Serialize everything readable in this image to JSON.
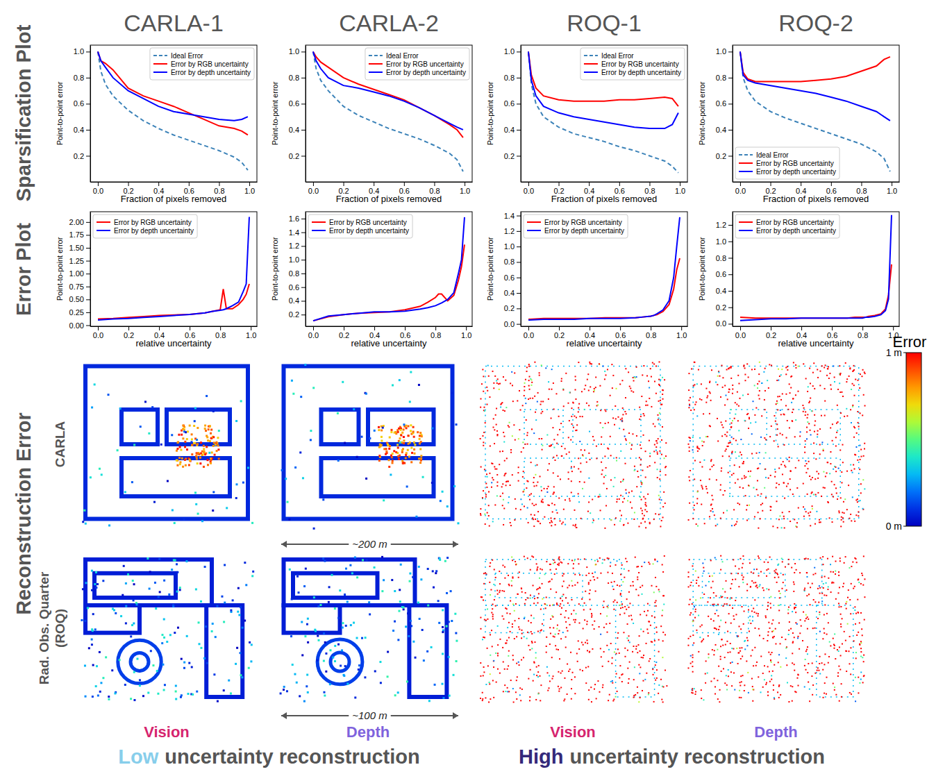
{
  "chart_data": [
    {
      "type": "line",
      "title": "CARLA-1",
      "x_label": "Fraction of pixels removed",
      "y_label": "Point-to-point error",
      "x": [
        0,
        0.02,
        0.05,
        0.1,
        0.2,
        0.3,
        0.4,
        0.5,
        0.6,
        0.7,
        0.8,
        0.9,
        0.95,
        0.99
      ],
      "xlim": [
        -0.05,
        1.05
      ],
      "xticks": [
        {
          "value": 0,
          "label": "0.0"
        },
        0.2,
        0.4,
        0.6,
        0.8,
        {
          "value": 1,
          "label": "1.0"
        }
      ],
      "ylim": [
        0,
        1.05
      ],
      "yticks": [
        0.2,
        0.4,
        0.6,
        0.8,
        {
          "value": 1,
          "label": "1.0"
        }
      ],
      "legend": "upper right",
      "series": [
        {
          "name": "Ideal Error",
          "color": "#3b82b8",
          "line_style": "dashed",
          "values": [
            1.0,
            0.85,
            0.75,
            0.66,
            0.55,
            0.47,
            0.41,
            0.36,
            0.32,
            0.28,
            0.24,
            0.19,
            0.15,
            0.09
          ]
        },
        {
          "name": "Error by RGB uncertainty",
          "color": "#ff0000",
          "line_style": "solid",
          "values": [
            1.0,
            0.93,
            0.91,
            0.86,
            0.72,
            0.66,
            0.62,
            0.58,
            0.53,
            0.48,
            0.43,
            0.41,
            0.39,
            0.36
          ]
        },
        {
          "name": "Error by depth uncertainty",
          "color": "#0000ff",
          "line_style": "solid",
          "values": [
            1.0,
            0.93,
            0.88,
            0.8,
            0.7,
            0.64,
            0.58,
            0.54,
            0.52,
            0.5,
            0.48,
            0.47,
            0.48,
            0.5
          ]
        }
      ]
    },
    {
      "type": "line",
      "title": "CARLA-2",
      "x_label": "Fraction of pixels removed",
      "y_label": "Point-to-point error",
      "x": [
        0,
        0.02,
        0.05,
        0.1,
        0.2,
        0.3,
        0.4,
        0.5,
        0.6,
        0.7,
        0.8,
        0.9,
        0.95,
        0.99
      ],
      "xlim": [
        -0.05,
        1.05
      ],
      "xticks": [
        {
          "value": 0,
          "label": "0.0"
        },
        0.2,
        0.4,
        0.6,
        0.8,
        {
          "value": 1,
          "label": "1.0"
        }
      ],
      "ylim": [
        0,
        1.05
      ],
      "yticks": [
        0.2,
        0.4,
        0.6,
        0.8,
        {
          "value": 1,
          "label": "1.0"
        }
      ],
      "legend": "upper right",
      "series": [
        {
          "name": "Ideal Error",
          "color": "#3b82b8",
          "line_style": "dashed",
          "values": [
            1.0,
            0.87,
            0.78,
            0.7,
            0.58,
            0.51,
            0.46,
            0.41,
            0.37,
            0.33,
            0.28,
            0.22,
            0.17,
            0.08
          ]
        },
        {
          "name": "Error by RGB uncertainty",
          "color": "#ff0000",
          "line_style": "solid",
          "values": [
            1.0,
            0.96,
            0.92,
            0.88,
            0.8,
            0.75,
            0.71,
            0.67,
            0.63,
            0.57,
            0.51,
            0.44,
            0.4,
            0.34
          ]
        },
        {
          "name": "Error by depth uncertainty",
          "color": "#0000ff",
          "line_style": "solid",
          "values": [
            1.0,
            0.93,
            0.87,
            0.8,
            0.74,
            0.72,
            0.69,
            0.66,
            0.62,
            0.57,
            0.51,
            0.45,
            0.42,
            0.4
          ]
        }
      ]
    },
    {
      "type": "line",
      "title": "ROQ-1",
      "x_label": "Fraction of pixels removed",
      "y_label": "Point-to-point error",
      "x": [
        0,
        0.02,
        0.05,
        0.1,
        0.2,
        0.3,
        0.4,
        0.5,
        0.6,
        0.7,
        0.8,
        0.9,
        0.95,
        0.99
      ],
      "xlim": [
        -0.05,
        1.05
      ],
      "xticks": [
        {
          "value": 0,
          "label": "0.0"
        },
        0.2,
        0.4,
        0.6,
        0.8,
        {
          "value": 1,
          "label": "1.0"
        }
      ],
      "ylim": [
        0,
        1.05
      ],
      "yticks": [
        0.2,
        0.4,
        0.6,
        0.8,
        {
          "value": 1,
          "label": "1.0"
        }
      ],
      "legend": "upper right",
      "series": [
        {
          "name": "Ideal Error",
          "color": "#3b82b8",
          "line_style": "dashed",
          "values": [
            1.0,
            0.75,
            0.6,
            0.5,
            0.42,
            0.37,
            0.34,
            0.31,
            0.27,
            0.24,
            0.2,
            0.16,
            0.12,
            0.07
          ]
        },
        {
          "name": "Error by RGB uncertainty",
          "color": "#ff0000",
          "line_style": "solid",
          "values": [
            1.0,
            0.82,
            0.72,
            0.66,
            0.63,
            0.62,
            0.62,
            0.62,
            0.63,
            0.63,
            0.64,
            0.65,
            0.64,
            0.58
          ]
        },
        {
          "name": "Error by depth uncertainty",
          "color": "#0000ff",
          "line_style": "solid",
          "values": [
            1.0,
            0.78,
            0.66,
            0.58,
            0.53,
            0.5,
            0.48,
            0.46,
            0.44,
            0.42,
            0.41,
            0.41,
            0.44,
            0.53
          ]
        }
      ]
    },
    {
      "type": "line",
      "title": "ROQ-2",
      "x_label": "Fraction of pixels removed",
      "y_label": "Point-to-point error",
      "x": [
        0,
        0.02,
        0.05,
        0.1,
        0.2,
        0.3,
        0.4,
        0.5,
        0.6,
        0.7,
        0.8,
        0.9,
        0.95,
        0.99
      ],
      "xlim": [
        -0.05,
        1.05
      ],
      "xticks": [
        {
          "value": 0,
          "label": "0.0"
        },
        0.2,
        0.4,
        0.6,
        0.8,
        {
          "value": 1,
          "label": "1.0"
        }
      ],
      "ylim": [
        0,
        1.05
      ],
      "yticks": [
        0.2,
        0.4,
        0.6,
        0.8,
        {
          "value": 1,
          "label": "1.0"
        }
      ],
      "legend": "lower left",
      "series": [
        {
          "name": "Ideal Error",
          "color": "#3b82b8",
          "line_style": "dashed",
          "values": [
            1.0,
            0.8,
            0.7,
            0.62,
            0.54,
            0.49,
            0.45,
            0.41,
            0.37,
            0.33,
            0.29,
            0.23,
            0.18,
            0.08
          ]
        },
        {
          "name": "Error by RGB uncertainty",
          "color": "#ff0000",
          "line_style": "solid",
          "values": [
            1.0,
            0.84,
            0.79,
            0.77,
            0.77,
            0.77,
            0.77,
            0.78,
            0.79,
            0.81,
            0.85,
            0.89,
            0.94,
            0.96
          ]
        },
        {
          "name": "Error by depth uncertainty",
          "color": "#0000ff",
          "line_style": "solid",
          "values": [
            1.0,
            0.82,
            0.78,
            0.76,
            0.74,
            0.72,
            0.7,
            0.68,
            0.65,
            0.62,
            0.58,
            0.54,
            0.5,
            0.47
          ]
        }
      ]
    },
    {
      "type": "line",
      "x_label": "relative uncertainty",
      "y_label": "Point-to-point error",
      "x": [
        0,
        0.1,
        0.2,
        0.3,
        0.4,
        0.5,
        0.6,
        0.7,
        0.75,
        0.8,
        0.82,
        0.84,
        0.88,
        0.92,
        0.95,
        0.97,
        0.99
      ],
      "xlim": [
        -0.05,
        1.04
      ],
      "xticks": [
        {
          "value": 0,
          "label": "0.0"
        },
        0.2,
        0.4,
        0.6,
        0.8,
        {
          "value": 1,
          "label": "1.0"
        }
      ],
      "ylim": [
        -0.02,
        2.2
      ],
      "yticks": [
        {
          "value": 0,
          "label": "0.00"
        },
        0.25,
        {
          "value": 0.5,
          "label": "0.50"
        },
        0.75,
        {
          "value": 1,
          "label": "1.00"
        },
        1.25,
        {
          "value": 1.5,
          "label": "1.50"
        },
        1.75,
        {
          "value": 2,
          "label": "2.00"
        }
      ],
      "legend": "upper left",
      "series": [
        {
          "name": "Error by RGB uncertainty",
          "color": "#ff0000",
          "line_style": "solid",
          "values": [
            0.12,
            0.13,
            0.15,
            0.17,
            0.19,
            0.2,
            0.21,
            0.24,
            0.27,
            0.3,
            0.7,
            0.32,
            0.32,
            0.4,
            0.5,
            0.6,
            0.8
          ]
        },
        {
          "name": "Error by depth uncertainty",
          "color": "#0000ff",
          "line_style": "solid",
          "values": [
            0.1,
            0.12,
            0.13,
            0.15,
            0.17,
            0.19,
            0.21,
            0.24,
            0.27,
            0.29,
            0.3,
            0.32,
            0.38,
            0.45,
            0.65,
            0.8,
            2.1
          ]
        }
      ]
    },
    {
      "type": "line",
      "x_label": "relative uncertainty",
      "y_label": "Point-to-point error",
      "x": [
        0,
        0.1,
        0.2,
        0.3,
        0.4,
        0.5,
        0.6,
        0.7,
        0.75,
        0.8,
        0.82,
        0.84,
        0.88,
        0.92,
        0.95,
        0.97,
        0.99
      ],
      "xlim": [
        -0.05,
        1.04
      ],
      "xticks": [
        {
          "value": 0,
          "label": "0.0"
        },
        0.2,
        0.4,
        0.6,
        0.8,
        {
          "value": 1,
          "label": "1.0"
        }
      ],
      "ylim": [
        0.03,
        1.7
      ],
      "yticks": [
        0.2,
        0.4,
        0.6,
        0.8,
        {
          "value": 1,
          "label": "1.0"
        },
        1.2,
        1.4,
        1.6
      ],
      "legend": "upper left",
      "series": [
        {
          "name": "Error by RGB uncertainty",
          "color": "#ff0000",
          "line_style": "solid",
          "values": [
            0.11,
            0.17,
            0.2,
            0.22,
            0.23,
            0.24,
            0.27,
            0.32,
            0.38,
            0.45,
            0.5,
            0.5,
            0.4,
            0.48,
            0.7,
            0.9,
            1.22
          ]
        },
        {
          "name": "Error by depth uncertainty",
          "color": "#0000ff",
          "line_style": "solid",
          "values": [
            0.11,
            0.18,
            0.2,
            0.22,
            0.24,
            0.24,
            0.25,
            0.28,
            0.3,
            0.33,
            0.35,
            0.37,
            0.42,
            0.52,
            0.8,
            1.0,
            1.62
          ]
        }
      ]
    },
    {
      "type": "line",
      "x_label": "relative uncertainty",
      "y_label": "Point-to-point error",
      "x": [
        0,
        0.1,
        0.2,
        0.3,
        0.4,
        0.5,
        0.6,
        0.7,
        0.75,
        0.8,
        0.82,
        0.84,
        0.88,
        0.92,
        0.95,
        0.97,
        0.99
      ],
      "xlim": [
        -0.05,
        1.04
      ],
      "xticks": [
        {
          "value": 0,
          "label": "0.0"
        },
        0.2,
        0.4,
        0.6,
        0.8,
        {
          "value": 1,
          "label": "1.0"
        }
      ],
      "ylim": [
        -0.03,
        1.45
      ],
      "yticks": [
        {
          "value": 0,
          "label": "0.0"
        },
        0.2,
        0.4,
        0.6,
        0.8,
        {
          "value": 1,
          "label": "1.0"
        },
        1.2,
        1.4
      ],
      "legend": "upper left",
      "series": [
        {
          "name": "Error by RGB uncertainty",
          "color": "#ff0000",
          "line_style": "solid",
          "values": [
            0.06,
            0.07,
            0.07,
            0.07,
            0.07,
            0.08,
            0.08,
            0.08,
            0.09,
            0.1,
            0.11,
            0.12,
            0.16,
            0.25,
            0.45,
            0.7,
            0.85
          ]
        },
        {
          "name": "Error by depth uncertainty",
          "color": "#0000ff",
          "line_style": "solid",
          "values": [
            0.05,
            0.06,
            0.06,
            0.06,
            0.07,
            0.07,
            0.07,
            0.08,
            0.09,
            0.1,
            0.11,
            0.13,
            0.18,
            0.3,
            0.6,
            1.0,
            1.38
          ]
        }
      ]
    },
    {
      "type": "line",
      "x_label": "relative uncertainty",
      "y_label": "Point-to-point error",
      "x": [
        0,
        0.1,
        0.2,
        0.3,
        0.4,
        0.5,
        0.6,
        0.7,
        0.75,
        0.8,
        0.82,
        0.84,
        0.88,
        0.92,
        0.95,
        0.97,
        0.99
      ],
      "xlim": [
        -0.05,
        1.04
      ],
      "xticks": [
        {
          "value": 0,
          "label": "0.0"
        },
        0.2,
        0.4,
        0.6,
        0.8,
        {
          "value": 1,
          "label": "1.0"
        }
      ],
      "ylim": [
        -0.03,
        1.36
      ],
      "yticks": [
        {
          "value": 0,
          "label": "0.0"
        },
        0.2,
        0.4,
        0.6,
        0.8,
        {
          "value": 1,
          "label": "1.0"
        },
        1.2
      ],
      "legend": "upper left",
      "series": [
        {
          "name": "Error by RGB uncertainty",
          "color": "#ff0000",
          "line_style": "solid",
          "values": [
            0.08,
            0.07,
            0.07,
            0.07,
            0.07,
            0.07,
            0.07,
            0.07,
            0.08,
            0.08,
            0.08,
            0.09,
            0.1,
            0.12,
            0.18,
            0.35,
            0.72
          ]
        },
        {
          "name": "Error by depth uncertainty",
          "color": "#0000ff",
          "line_style": "solid",
          "values": [
            0.04,
            0.05,
            0.06,
            0.06,
            0.07,
            0.07,
            0.07,
            0.07,
            0.07,
            0.07,
            0.08,
            0.08,
            0.09,
            0.11,
            0.16,
            0.3,
            1.32
          ]
        }
      ]
    }
  ],
  "figure": {
    "row_labels": [
      "Sparsification Plot",
      "Error Plot",
      "Reconstruction Error"
    ],
    "sub_row_labels": [
      [
        "CARLA"
      ],
      [
        "Rad. Obs. Quarter",
        "(ROQ)"
      ]
    ],
    "colorbar": {
      "title": "Error",
      "range": [
        0,
        1
      ],
      "ticks": [
        {
          "value": 1,
          "label": "1 m"
        },
        {
          "value": 0,
          "label": "0 m"
        }
      ]
    },
    "annotations": [
      "~200 m",
      "~100 m"
    ],
    "modality_labels": [
      {
        "text": "Vision",
        "color": "#d6246e"
      },
      {
        "text": "Depth",
        "color": "#7f63dd"
      },
      {
        "text": "Vision",
        "color": "#d6246e"
      },
      {
        "text": "Depth",
        "color": "#7f63dd"
      }
    ],
    "footer": [
      {
        "emphasis": "Low",
        "color": "#87ceeb",
        "text": "uncertainty reconstruction"
      },
      {
        "emphasis": "High",
        "color": "#34297a",
        "text": "uncertainty reconstruction"
      }
    ]
  }
}
